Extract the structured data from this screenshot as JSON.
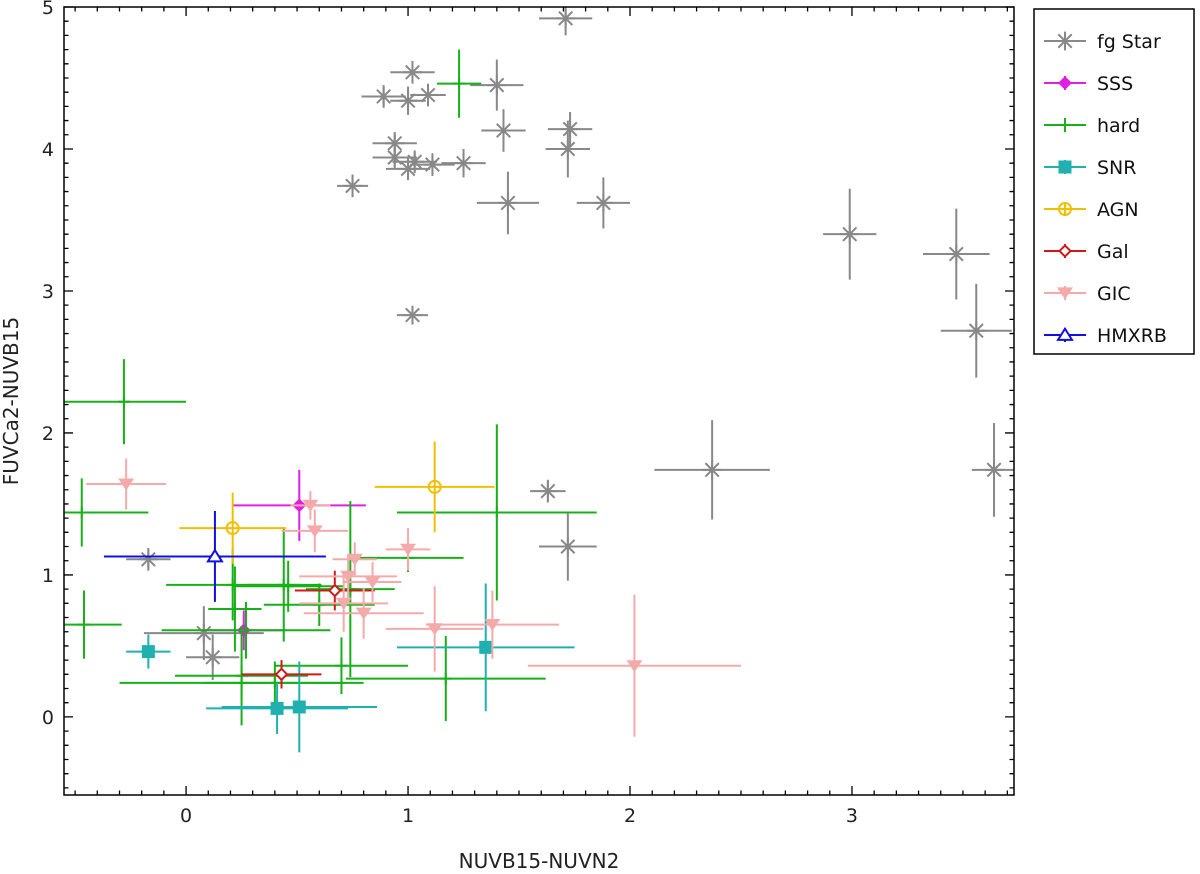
{
  "chart_data": {
    "type": "scatter",
    "title": "",
    "xlabel": "NUVB15-NUVN2",
    "ylabel": "FUVCa2-NUVB15",
    "xlim": [
      -0.55,
      3.73
    ],
    "ylim": [
      -0.55,
      5.0
    ],
    "xticks": [
      0,
      1,
      2,
      3
    ],
    "yticks": [
      0,
      1,
      2,
      3,
      4,
      5
    ],
    "grid": false,
    "legend_position": "top-right outside",
    "series": [
      {
        "name": "fg Star",
        "marker": "asterisk",
        "color": "#888888",
        "points": [
          {
            "x": 1.71,
            "y": 4.92,
            "xerr": 0.12,
            "yerr": 0.12
          },
          {
            "x": 1.02,
            "y": 4.54,
            "xerr": 0.1,
            "yerr": 0.08
          },
          {
            "x": 0.89,
            "y": 4.37,
            "xerr": 0.1,
            "yerr": 0.08
          },
          {
            "x": 1.0,
            "y": 4.34,
            "xerr": 0.08,
            "yerr": 0.1
          },
          {
            "x": 1.09,
            "y": 4.38,
            "xerr": 0.08,
            "yerr": 0.08
          },
          {
            "x": 1.4,
            "y": 4.45,
            "xerr": 0.12,
            "yerr": 0.18
          },
          {
            "x": 1.43,
            "y": 4.13,
            "xerr": 0.1,
            "yerr": 0.15
          },
          {
            "x": 1.73,
            "y": 4.14,
            "xerr": 0.1,
            "yerr": 0.12
          },
          {
            "x": 1.72,
            "y": 4.0,
            "xerr": 0.1,
            "yerr": 0.2
          },
          {
            "x": 0.94,
            "y": 4.04,
            "xerr": 0.1,
            "yerr": 0.08
          },
          {
            "x": 0.94,
            "y": 3.94,
            "xerr": 0.1,
            "yerr": 0.08
          },
          {
            "x": 1.0,
            "y": 3.86,
            "xerr": 0.1,
            "yerr": 0.08
          },
          {
            "x": 1.03,
            "y": 3.91,
            "xerr": 0.1,
            "yerr": 0.08
          },
          {
            "x": 1.11,
            "y": 3.89,
            "xerr": 0.1,
            "yerr": 0.08
          },
          {
            "x": 1.25,
            "y": 3.9,
            "xerr": 0.1,
            "yerr": 0.1
          },
          {
            "x": 0.75,
            "y": 3.74,
            "xerr": 0.07,
            "yerr": 0.08
          },
          {
            "x": 1.45,
            "y": 3.62,
            "xerr": 0.14,
            "yerr": 0.22
          },
          {
            "x": 1.88,
            "y": 3.62,
            "xerr": 0.12,
            "yerr": 0.18
          },
          {
            "x": 1.02,
            "y": 2.83,
            "xerr": 0.07,
            "yerr": 0.06
          },
          {
            "x": 2.99,
            "y": 3.4,
            "xerr": 0.12,
            "yerr": 0.32
          },
          {
            "x": 3.47,
            "y": 3.26,
            "xerr": 0.15,
            "yerr": 0.32
          },
          {
            "x": 3.56,
            "y": 2.72,
            "xerr": 0.16,
            "yerr": 0.33
          },
          {
            "x": 2.37,
            "y": 1.74,
            "xerr": 0.26,
            "yerr": 0.35
          },
          {
            "x": 3.64,
            "y": 1.74,
            "xerr": 0.1,
            "yerr": 0.33
          },
          {
            "x": 1.63,
            "y": 1.59,
            "xerr": 0.08,
            "yerr": 0.08
          },
          {
            "x": 1.72,
            "y": 1.2,
            "xerr": 0.13,
            "yerr": 0.24
          },
          {
            "x": -0.17,
            "y": 1.11,
            "xerr": 0.1,
            "yerr": 0.08
          },
          {
            "x": 0.08,
            "y": 0.59,
            "xerr": 0.27,
            "yerr": 0.19
          },
          {
            "x": 0.12,
            "y": 0.42,
            "xerr": 0.12,
            "yerr": 0.16
          }
        ]
      },
      {
        "name": "SSS",
        "marker": "diamond-filled",
        "color": "#e020e0",
        "points": [
          {
            "x": 0.51,
            "y": 1.49,
            "xerr": 0.3,
            "yerr": 0.25
          },
          {
            "x": 0.26,
            "y": 0.61,
            "xerr": 0.19,
            "yerr": 0.14
          }
        ]
      },
      {
        "name": "hard",
        "marker": "plus",
        "color": "#18b018",
        "points": [
          {
            "x": 1.23,
            "y": 4.46,
            "xerr": 0.1,
            "yerr": 0.24
          },
          {
            "x": -0.28,
            "y": 2.22,
            "xerr": 0.28,
            "yerr": 0.3
          },
          {
            "x": -0.47,
            "y": 1.44,
            "xerr": 0.3,
            "yerr": 0.24
          },
          {
            "x": -0.46,
            "y": 0.65,
            "xerr": 0.17,
            "yerr": 0.24
          },
          {
            "x": 1.4,
            "y": 1.44,
            "xerr": 0.45,
            "yerr": 0.62
          },
          {
            "x": 1.0,
            "y": 1.12,
            "xerr": 0.25,
            "yerr": 0.1
          },
          {
            "x": 0.74,
            "y": 0.9,
            "xerr": 0.2,
            "yerr": 0.62
          },
          {
            "x": 0.44,
            "y": 0.93,
            "xerr": 0.17,
            "yerr": 0.4
          },
          {
            "x": 0.21,
            "y": 0.93,
            "xerr": 0.3,
            "yerr": 0.25
          },
          {
            "x": 0.22,
            "y": 0.76,
            "xerr": 0.12,
            "yerr": 0.3
          },
          {
            "x": 0.27,
            "y": 0.61,
            "xerr": 0.38,
            "yerr": 0.2
          },
          {
            "x": 0.46,
            "y": 0.92,
            "xerr": 0.25,
            "yerr": 0.18
          },
          {
            "x": 0.6,
            "y": 0.79,
            "xerr": 0.25,
            "yerr": 0.15
          },
          {
            "x": 0.7,
            "y": 0.36,
            "xerr": 0.3,
            "yerr": 0.2
          },
          {
            "x": 1.17,
            "y": 0.27,
            "xerr": 0.45,
            "yerr": 0.3
          },
          {
            "x": 0.25,
            "y": 0.29,
            "xerr": 0.3,
            "yerr": 0.35
          },
          {
            "x": 0.4,
            "y": 0.24,
            "xerr": 0.32,
            "yerr": 0.15
          },
          {
            "x": 0.25,
            "y": 0.24,
            "xerr": 0.55,
            "yerr": 0.12
          }
        ]
      },
      {
        "name": "SNR",
        "marker": "square-filled",
        "color": "#20b0b0",
        "points": [
          {
            "x": -0.17,
            "y": 0.46,
            "xerr": 0.1,
            "yerr": 0.12
          },
          {
            "x": 0.41,
            "y": 0.06,
            "xerr": 0.32,
            "yerr": 0.18
          },
          {
            "x": 0.51,
            "y": 0.07,
            "xerr": 0.35,
            "yerr": 0.32
          },
          {
            "x": 1.35,
            "y": 0.49,
            "xerr": 0.4,
            "yerr": 0.45
          }
        ]
      },
      {
        "name": "AGN",
        "marker": "circle-open",
        "color": "#f0c000",
        "points": [
          {
            "x": 0.21,
            "y": 1.33,
            "xerr": 0.24,
            "yerr": 0.25
          },
          {
            "x": 1.12,
            "y": 1.62,
            "xerr": 0.27,
            "yerr": 0.32
          }
        ]
      },
      {
        "name": "Gal",
        "marker": "diamond-open",
        "color": "#d01818",
        "points": [
          {
            "x": 0.67,
            "y": 0.89,
            "xerr": 0.18,
            "yerr": 0.14
          },
          {
            "x": 0.43,
            "y": 0.3,
            "xerr": 0.18,
            "yerr": 0.1
          }
        ]
      },
      {
        "name": "GIC",
        "marker": "triangle-down-filled",
        "color": "#f4aaaa",
        "points": [
          {
            "x": -0.27,
            "y": 1.64,
            "xerr": 0.18,
            "yerr": 0.18
          },
          {
            "x": 0.56,
            "y": 1.49,
            "xerr": 0.09,
            "yerr": 0.1
          },
          {
            "x": 0.58,
            "y": 1.31,
            "xerr": 0.15,
            "yerr": 0.15
          },
          {
            "x": 1.0,
            "y": 1.18,
            "xerr": 0.1,
            "yerr": 0.15
          },
          {
            "x": 0.76,
            "y": 1.11,
            "xerr": 0.1,
            "yerr": 0.12
          },
          {
            "x": 0.73,
            "y": 0.99,
            "xerr": 0.22,
            "yerr": 0.15
          },
          {
            "x": 0.84,
            "y": 0.95,
            "xerr": 0.13,
            "yerr": 0.14
          },
          {
            "x": 0.71,
            "y": 0.8,
            "xerr": 0.2,
            "yerr": 0.2
          },
          {
            "x": 0.8,
            "y": 0.73,
            "xerr": 0.27,
            "yerr": 0.18
          },
          {
            "x": 1.12,
            "y": 0.62,
            "xerr": 0.22,
            "yerr": 0.3
          },
          {
            "x": 1.38,
            "y": 0.65,
            "xerr": 0.3,
            "yerr": 0.24
          },
          {
            "x": 2.02,
            "y": 0.36,
            "xerr": 0.48,
            "yerr": 0.5
          }
        ]
      },
      {
        "name": "HMXRB",
        "marker": "triangle-up-open",
        "color": "#1010e0",
        "points": [
          {
            "x": 0.13,
            "y": 1.13,
            "xerr": 0.5,
            "yerr": 0.32
          }
        ]
      }
    ]
  }
}
